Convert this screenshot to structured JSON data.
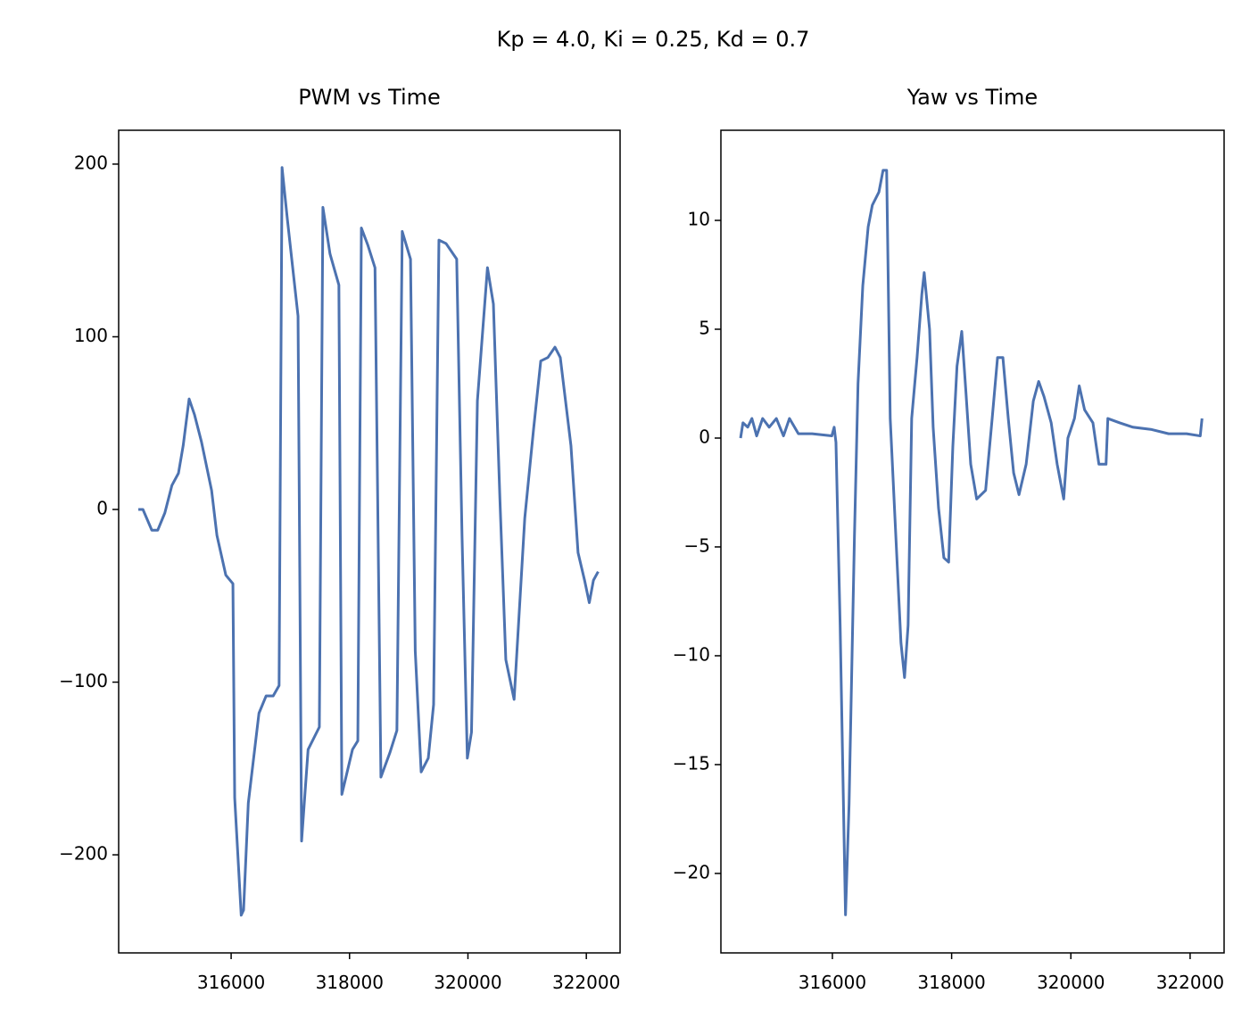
{
  "title": "Kp = 4.0, Ki = 0.25, Kd = 0.7",
  "chart_data": [
    {
      "type": "line",
      "title": "PWM vs Time",
      "color": "#4c72b0",
      "xlim": [
        314100,
        322570
      ],
      "ylim": [
        -256.8,
        219.6
      ],
      "xticks": [
        316000,
        318000,
        320000,
        322000
      ],
      "yticks": [
        {
          "value": -200,
          "label": "−200"
        },
        {
          "value": -100,
          "label": "−100"
        },
        0,
        100,
        200
      ],
      "x": [
        314432,
        314510,
        314660,
        314760,
        314880,
        315000,
        315110,
        315190,
        315290,
        315380,
        315500,
        315670,
        315760,
        315910,
        316030,
        316060,
        316170,
        316210,
        316290,
        316470,
        316590,
        316710,
        316810,
        316860,
        316950,
        317040,
        317130,
        317190,
        317300,
        317490,
        317550,
        317670,
        317820,
        317870,
        318050,
        318140,
        318200,
        318310,
        318430,
        318530,
        318680,
        318800,
        318890,
        319030,
        319110,
        319210,
        319330,
        319420,
        319510,
        319630,
        319810,
        319900,
        319990,
        320060,
        320160,
        320330,
        320430,
        320540,
        320640,
        320780,
        320960,
        321110,
        321230,
        321350,
        321470,
        321560,
        321740,
        321860,
        321970,
        322050,
        322120,
        322200
      ],
      "values": [
        0,
        0,
        -12,
        -12,
        -2,
        14,
        21,
        37,
        64,
        55,
        39,
        11,
        -15,
        -38,
        -43,
        -167,
        -235,
        -232,
        -170,
        -118,
        -108,
        -108,
        -102,
        198,
        168,
        140,
        112,
        -192,
        -139,
        -126,
        175,
        148,
        130,
        -165,
        -139,
        -134,
        163,
        153,
        140,
        -155,
        -141,
        -128,
        161,
        145,
        -82,
        -152,
        -144,
        -113,
        156,
        154,
        145,
        -15,
        -144,
        -129,
        63,
        140,
        119,
        6,
        -87,
        -110,
        -5,
        47,
        86,
        88,
        94,
        88,
        37,
        -25,
        -41,
        -54,
        -41,
        -36
      ]
    },
    {
      "type": "line",
      "title": "Yaw vs Time",
      "color": "#4c72b0",
      "xlim": [
        314130,
        322570
      ],
      "ylim": [
        -23.65,
        14.14
      ],
      "xticks": [
        316000,
        318000,
        320000,
        322000
      ],
      "yticks": [
        {
          "value": -20,
          "label": "−20"
        },
        {
          "value": -15,
          "label": "−15"
        },
        {
          "value": -10,
          "label": "−10"
        },
        {
          "value": -5,
          "label": "−5"
        },
        0,
        5,
        10
      ],
      "x": [
        314460,
        314500,
        314580,
        314650,
        314730,
        314830,
        314940,
        315060,
        315180,
        315280,
        315430,
        315660,
        315990,
        316030,
        316060,
        316130,
        316220,
        316280,
        316370,
        316430,
        316510,
        316600,
        316670,
        316780,
        316850,
        316910,
        316970,
        317050,
        317150,
        317210,
        317270,
        317330,
        317420,
        317500,
        317540,
        317630,
        317690,
        317780,
        317870,
        317950,
        318020,
        318090,
        318170,
        318240,
        318320,
        318420,
        318570,
        318680,
        318770,
        318860,
        318950,
        319040,
        319130,
        319250,
        319370,
        319460,
        319550,
        319670,
        319770,
        319880,
        319950,
        320060,
        320140,
        320230,
        320370,
        320470,
        320590,
        320620,
        320820,
        321040,
        321340,
        321640,
        321940,
        322170,
        322200
      ],
      "values": [
        0,
        0.7,
        0.5,
        0.9,
        0.1,
        0.9,
        0.5,
        0.9,
        0.1,
        0.9,
        0.2,
        0.2,
        0.1,
        0.5,
        -0.2,
        -8.6,
        -21.9,
        -16.8,
        -4.5,
        2.5,
        7.0,
        9.7,
        10.7,
        11.3,
        12.3,
        12.3,
        0.9,
        -3.7,
        -9.4,
        -11.0,
        -8.6,
        0.9,
        3.7,
        6.6,
        7.6,
        5.0,
        0.5,
        -3.2,
        -5.5,
        -5.7,
        -0.4,
        3.3,
        4.9,
        2.1,
        -1.2,
        -2.8,
        -2.4,
        0.9,
        3.7,
        3.7,
        0.9,
        -1.6,
        -2.6,
        -1.2,
        1.7,
        2.6,
        1.9,
        0.7,
        -1.2,
        -2.8,
        0,
        0.9,
        2.4,
        1.3,
        0.7,
        -1.2,
        -1.2,
        0.9,
        0.7,
        0.5,
        0.4,
        0.2,
        0.2,
        0.1,
        0.9
      ]
    }
  ]
}
